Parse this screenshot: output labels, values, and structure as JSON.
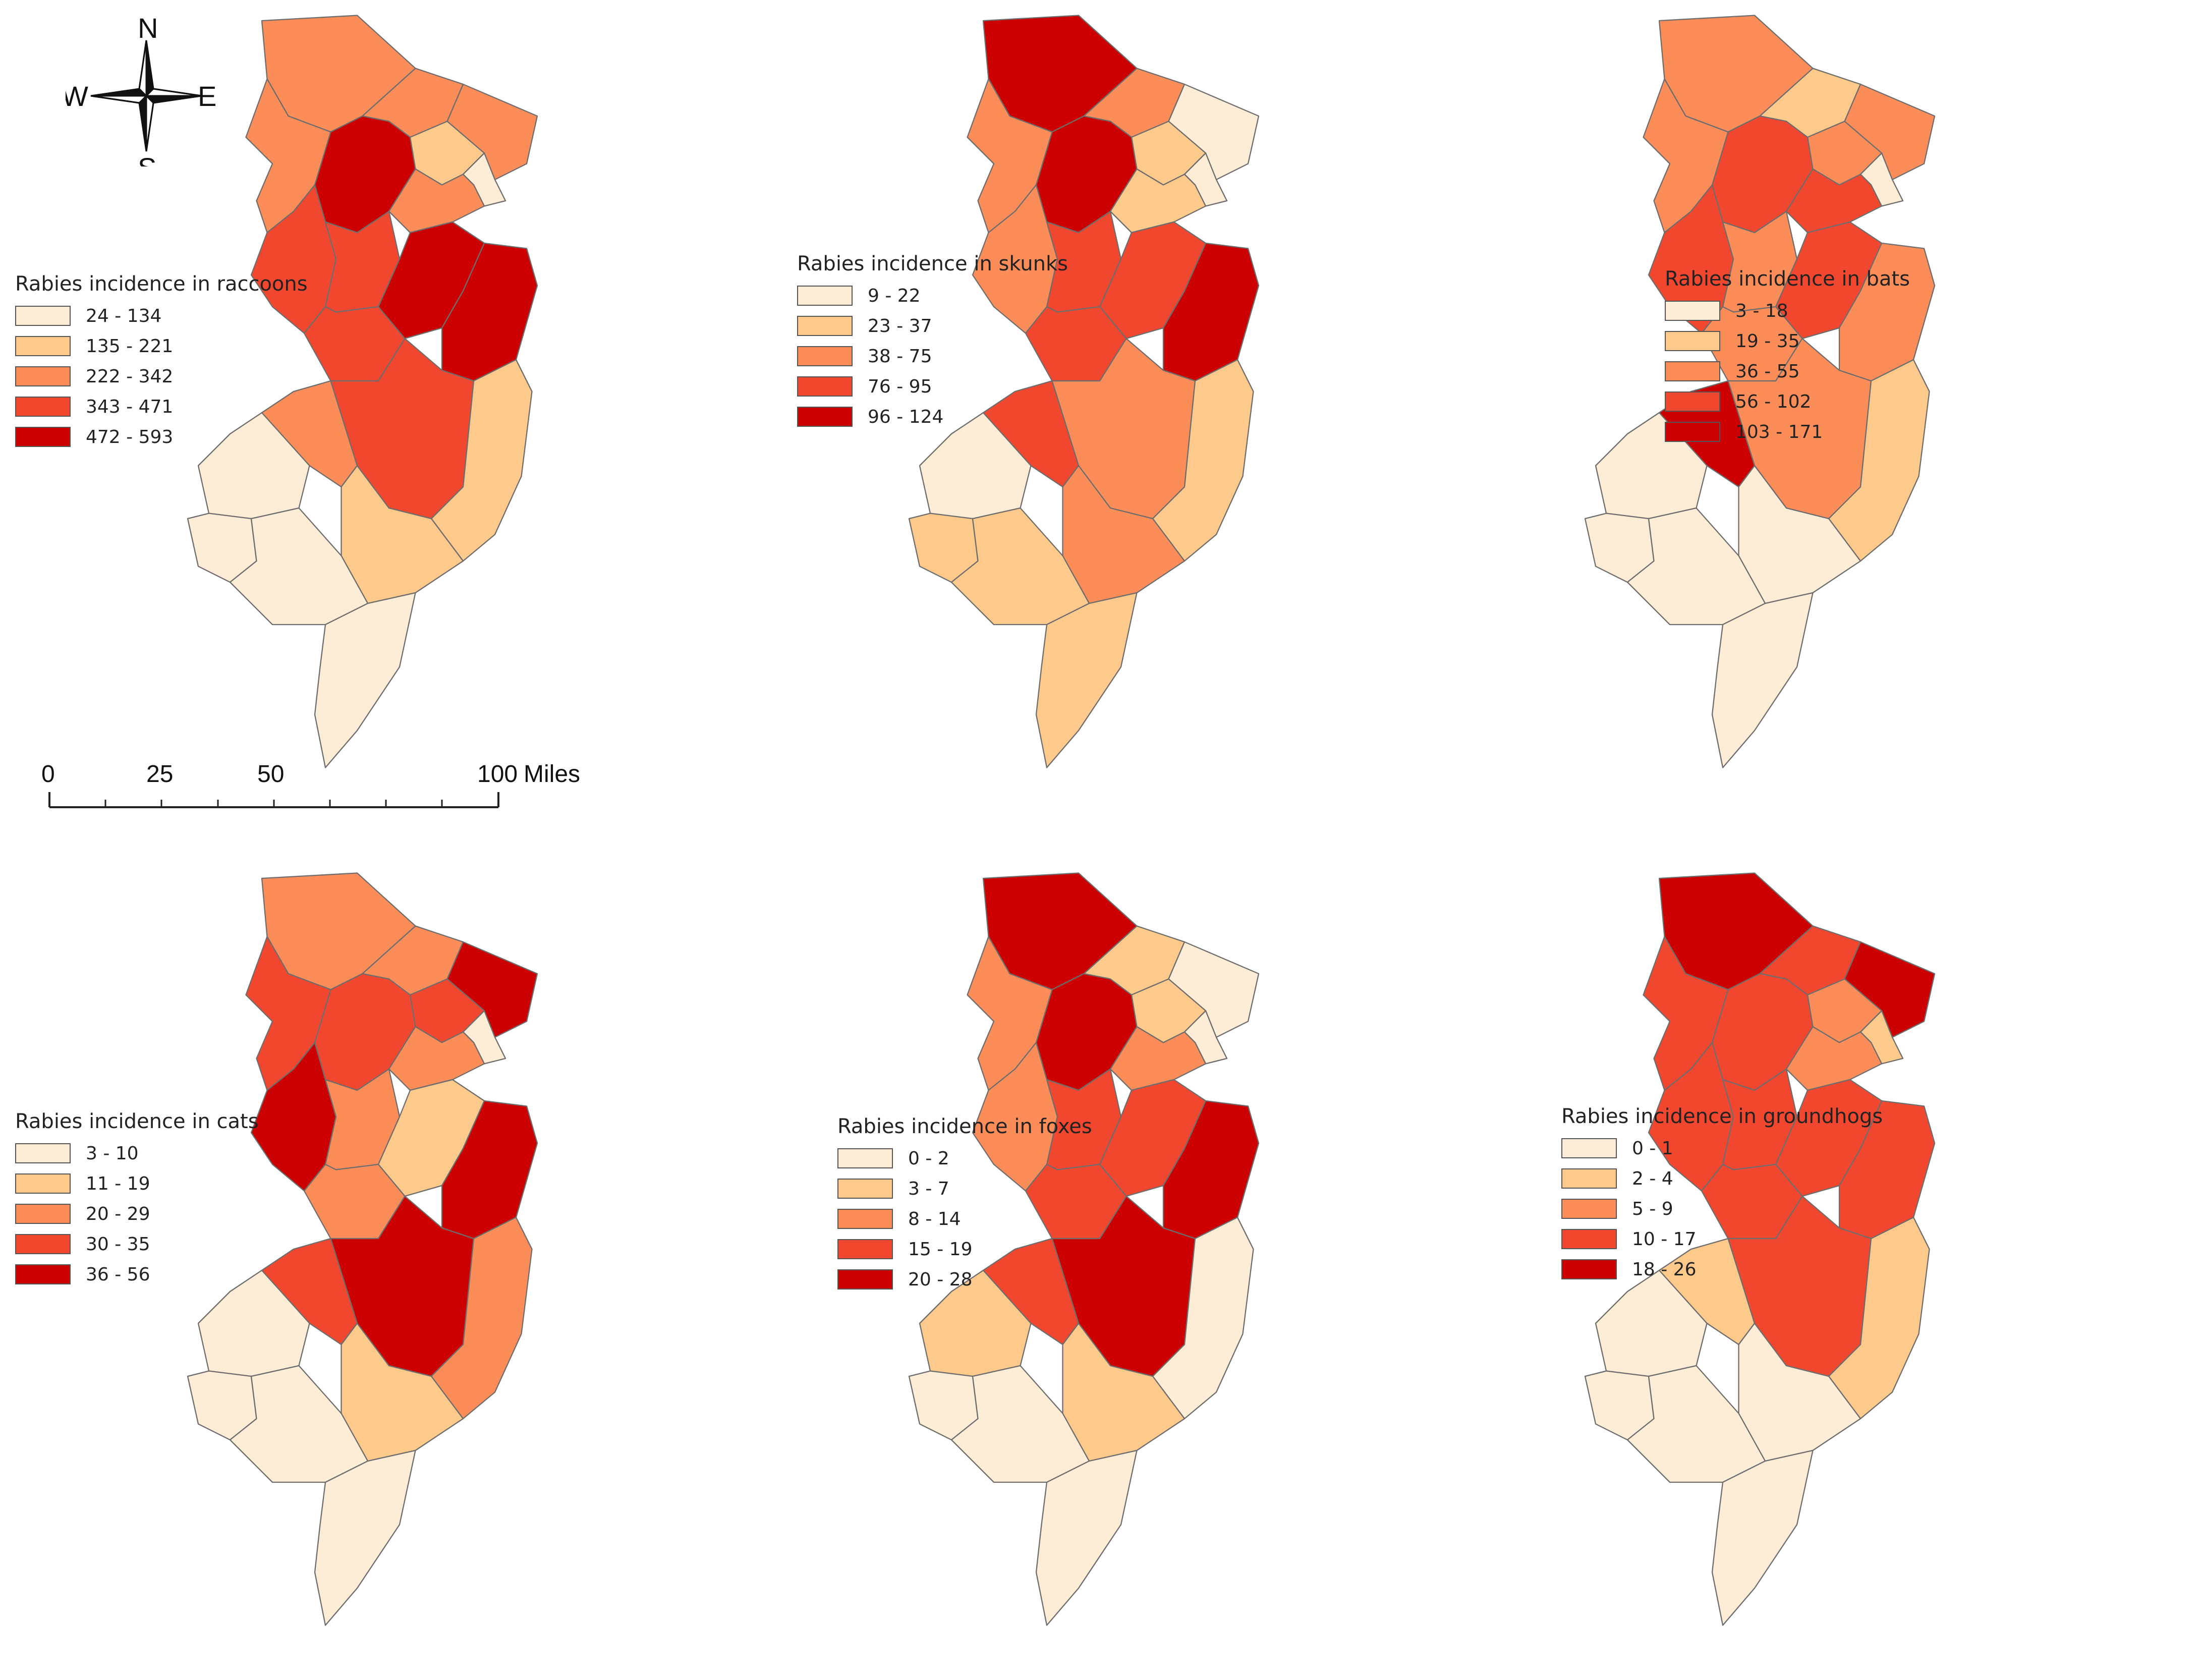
{
  "compass": {
    "north": "N",
    "south": "S",
    "east": "E",
    "west": "W"
  },
  "scale_bar": {
    "labels": [
      "0",
      "25",
      "50",
      "100"
    ],
    "unit": "Miles"
  },
  "panels": [
    {
      "legend_title": "Rabies incidence in raccoons",
      "classes": [
        "24 - 134",
        "135 - 221",
        "222 - 342",
        "343 - 471",
        "472 - 593"
      ],
      "county_class": [
        2,
        2,
        2,
        4,
        1,
        0,
        2,
        3,
        3,
        2,
        4,
        4,
        3,
        1,
        2,
        0,
        1,
        0
      ]
    },
    {
      "legend_title": "Rabies incidence in skunks",
      "classes": [
        "9 - 22",
        "23 - 37",
        "38 - 75",
        "76 - 95",
        "96 - 124"
      ],
      "county_class": [
        4,
        2,
        0,
        4,
        1,
        0,
        2,
        2,
        3,
        1,
        3,
        4,
        2,
        1,
        3,
        0,
        2,
        1
      ]
    },
    {
      "legend_title": "Rabies incidence in bats",
      "classes": [
        "3 - 18",
        "19 - 35",
        "36 - 55",
        "56 - 102",
        "103 - 171"
      ],
      "county_class": [
        2,
        1,
        2,
        3,
        2,
        0,
        2,
        3,
        2,
        3,
        3,
        2,
        2,
        1,
        4,
        0,
        0,
        0
      ]
    },
    {
      "legend_title": "Rabies incidence in cats",
      "classes": [
        "3 - 10",
        "11 - 19",
        "20 - 29",
        "30 - 35",
        "36 - 56"
      ],
      "county_class": [
        2,
        2,
        4,
        3,
        3,
        0,
        3,
        4,
        2,
        2,
        1,
        4,
        4,
        2,
        3,
        0,
        1,
        0
      ]
    },
    {
      "legend_title": "Rabies incidence in foxes",
      "classes": [
        "0 - 2",
        "3 - 7",
        "8 - 14",
        "15 - 19",
        "20 - 28"
      ],
      "county_class": [
        4,
        1,
        0,
        4,
        1,
        0,
        2,
        2,
        3,
        2,
        3,
        4,
        4,
        0,
        3,
        1,
        1,
        0
      ]
    },
    {
      "legend_title": "Rabies incidence in groundhogs",
      "classes": [
        "0 - 1",
        "2 - 4",
        "5 - 9",
        "10 - 17",
        "18 - 26"
      ],
      "county_class": [
        4,
        3,
        4,
        3,
        2,
        1,
        3,
        3,
        3,
        2,
        3,
        3,
        3,
        1,
        1,
        0,
        0,
        0
      ]
    }
  ],
  "colors": [
    "#feedd6",
    "#fdca8c",
    "#fc8d59",
    "#f2472f",
    "#cc0000"
  ]
}
